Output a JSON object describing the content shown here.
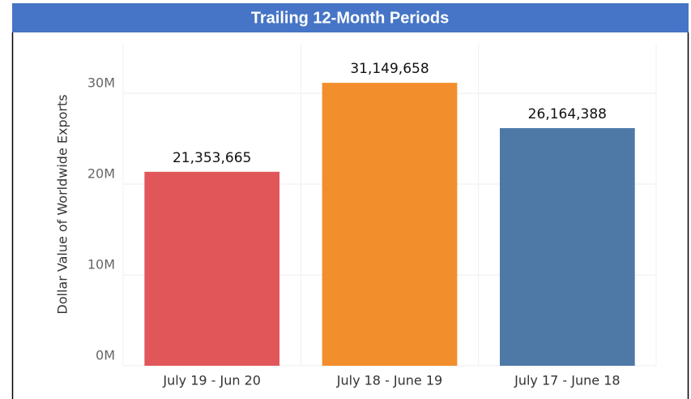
{
  "chart_data": {
    "type": "bar",
    "title": "Trailing 12-Month Periods",
    "y_label": "Dollar Value of Worldwide Exports",
    "categories": [
      "July 19 - Jun 20",
      "July 18 - June 19",
      "July 17 - June 18"
    ],
    "values": [
      21353665,
      31149658,
      26164388
    ],
    "value_labels": [
      "21,353,665",
      "31,149,658",
      "26,164,388"
    ],
    "colors": [
      "#e15759",
      "#f28e2b",
      "#4e79a7"
    ],
    "ylim": [
      0,
      35000000
    ],
    "yticks": [
      {
        "value": 0,
        "label": "0M"
      },
      {
        "value": 10000000,
        "label": "10M"
      },
      {
        "value": 20000000,
        "label": "20M"
      },
      {
        "value": 30000000,
        "label": "30M"
      }
    ],
    "grid": true
  }
}
